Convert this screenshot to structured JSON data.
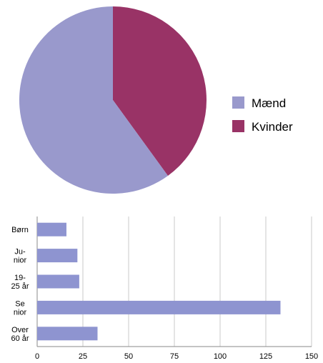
{
  "chart_data": [
    {
      "type": "pie",
      "categories": [
        "Mænd",
        "Kvinder"
      ],
      "values": [
        60,
        40
      ],
      "colors": [
        "#9999cc",
        "#993366"
      ],
      "legend": {
        "entries": [
          "Mænd",
          "Kvinder"
        ],
        "placement": "right"
      }
    },
    {
      "type": "bar",
      "orientation": "horizontal",
      "categories": [
        [
          "Børn"
        ],
        [
          "Ju-",
          "nior"
        ],
        [
          "19-",
          "25 år"
        ],
        [
          "Se",
          "nior"
        ],
        [
          "Over",
          "60 år"
        ]
      ],
      "values": [
        16,
        22,
        23,
        133,
        33
      ],
      "xlim": [
        0,
        150
      ],
      "xticks": [
        0,
        25,
        50,
        75,
        100,
        125,
        150
      ],
      "grid": true,
      "bar_color": "#8e94d0"
    }
  ]
}
